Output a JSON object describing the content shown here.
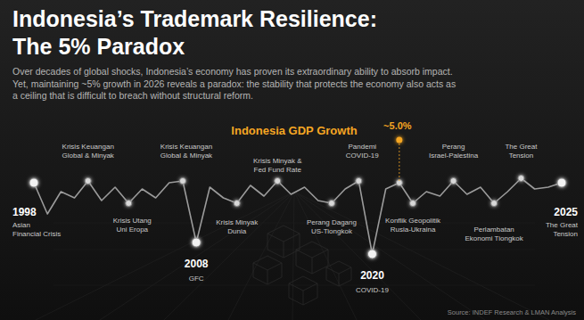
{
  "chart_data": {
    "type": "line",
    "title": [
      "Indonesia’s Trademark Resilience:",
      "The 5% Paradox"
    ],
    "subtitle": [
      "Over decades of global shocks, Indonesia’s economy has proven its extraordinary ability to absorb impact.",
      "Yet, maintaining ~5% growth in 2026 reveals a paradox: the stability that protects the economy also acts as",
      "a ceiling that is difficult to breach without structural reform."
    ],
    "categories": [
      "1998",
      null,
      null,
      null,
      null,
      null,
      null,
      null,
      null,
      null,
      null,
      null,
      "2008",
      null,
      null,
      null,
      null,
      null,
      null,
      null,
      null,
      null,
      null,
      null,
      null,
      "2020",
      null,
      null,
      null,
      null,
      null,
      null,
      null,
      null,
      null,
      null,
      null,
      null,
      null,
      "2025"
    ],
    "values": [
      9.5,
      6.0,
      8.5,
      7.8,
      9.7,
      7.5,
      9.0,
      7.2,
      8.8,
      7.8,
      9.5,
      9.7,
      2.8,
      9.0,
      7.8,
      7.2,
      9.2,
      8.0,
      9.7,
      8.2,
      9.0,
      7.5,
      7.2,
      8.8,
      9.7,
      1.5,
      8.8,
      9.5,
      7.2,
      8.5,
      8.0,
      9.7,
      8.2,
      9.0,
      7.2,
      8.5,
      10.0,
      8.8,
      9.0,
      9.5
    ],
    "color": "#9b9b9b",
    "ylim": [
      0,
      17
    ],
    "tick_labels": "x",
    "annotations": [
      {
        "text": [
          "Asian",
          "Financial Crisis"
        ]
      },
      {
        "text": [
          "Krisis Keuangan",
          "Global & Minyak"
        ]
      },
      {
        "text": [
          "Krisis Utang",
          "Uni Eropa"
        ]
      },
      {
        "text": [
          "Krisis Keuangan",
          "Global & Minyak"
        ]
      },
      {
        "text": [
          "GFC"
        ]
      },
      {
        "text": [
          "Krisis Minyak",
          "Dunia"
        ]
      },
      {
        "text": [
          "Krisis Minyak &",
          "Fed Fund Rate"
        ]
      },
      {
        "text": [
          "Perang Dagang",
          "US-Tiongkok"
        ]
      },
      {
        "text": [
          "Pandemi",
          "COVID-19"
        ]
      },
      {
        "text": [
          "COVID-19"
        ]
      },
      {
        "text": [
          "Konflik Geopolitik",
          "Rusia-Ukraina"
        ]
      },
      {
        "text": [
          "Perang",
          "Israel-Palestina"
        ]
      },
      {
        "text": [
          "Perlambatan",
          "Ekonomi Tiongkok"
        ]
      },
      {
        "text": [
          "The Great",
          "Tension"
        ]
      },
      {
        "text": [
          "The Great",
          "Tension"
        ]
      },
      {
        "text": [
          "Indonesia GDP Growth"
        ]
      },
      {
        "text": [
          "~5.0%"
        ]
      }
    ],
    "source": "Source: INDEF Research & LMAN Analysis"
  }
}
